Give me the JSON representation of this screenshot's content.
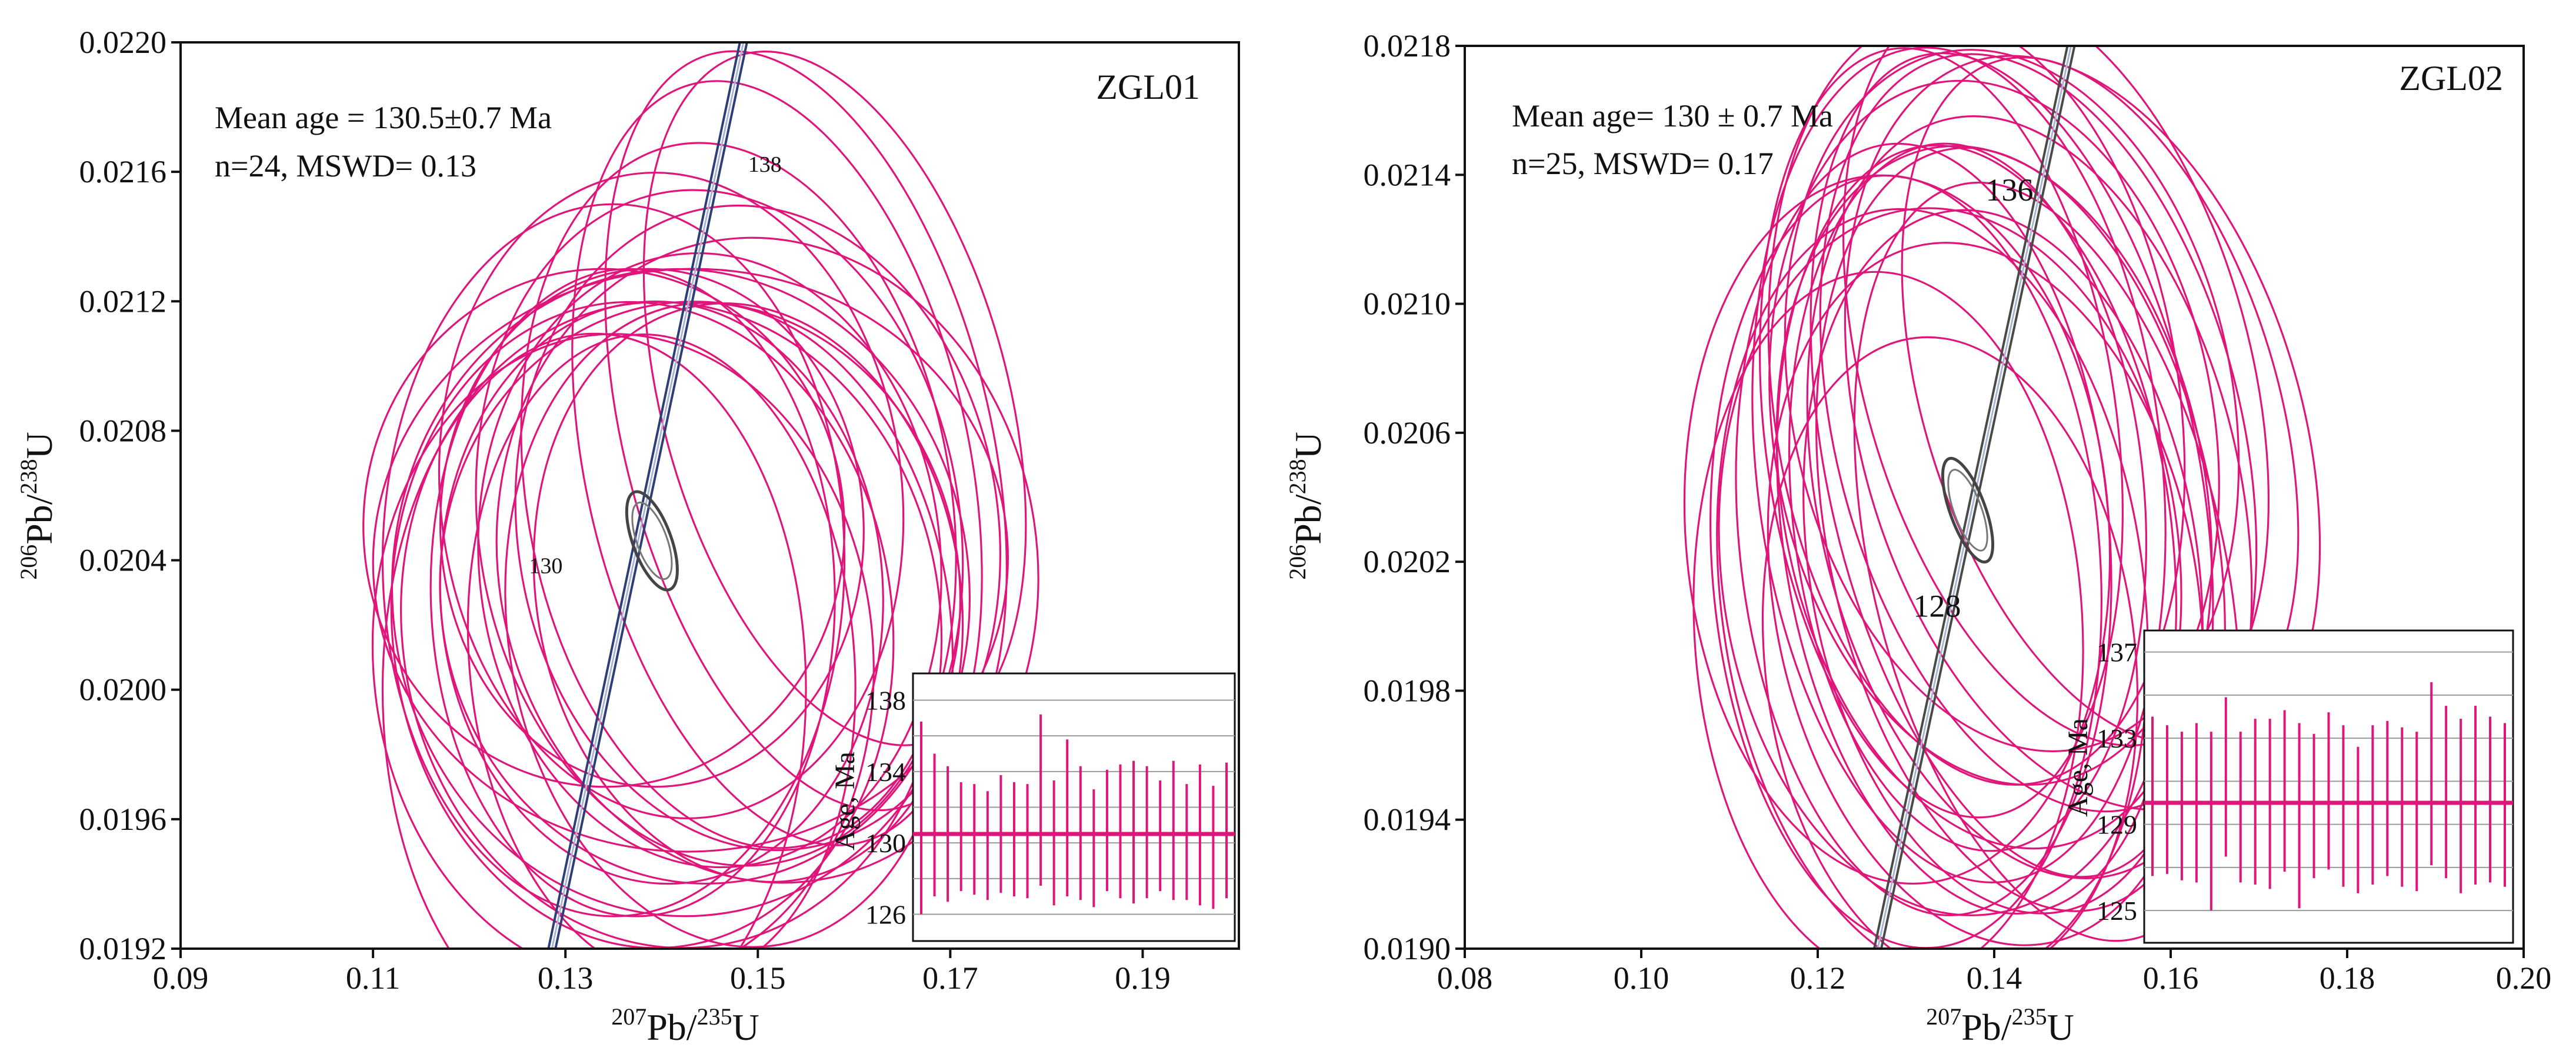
{
  "colors": {
    "ellipse": "#e0157a",
    "concordia_left": "#2e3f78",
    "concordia_right": "#4a4a4a",
    "axis": "#111111",
    "grid": "#9a9a9a"
  },
  "chart_data": [
    {
      "type": "scatter",
      "subtype": "concordia",
      "sample": "ZGL01",
      "stats": {
        "mean_line": "Mean age = 130.5±0.7 Ma",
        "n_line": "n=24, MSWD= 0.13"
      },
      "xlabel": {
        "sup1": "207",
        "main1": "Pb/",
        "sup2": "235",
        "main2": "U"
      },
      "ylabel": {
        "sup1": "206",
        "main1": "Pb/",
        "sup2": "238",
        "main2": "U"
      },
      "xlim": [
        0.09,
        0.2
      ],
      "ylim": [
        0.0192,
        0.022
      ],
      "x_ticks": [
        "0.09",
        "0.11",
        "0.13",
        "0.15",
        "0.17",
        "0.19"
      ],
      "y_ticks": [
        "0.0192",
        "0.0196",
        "0.0200",
        "0.0204",
        "0.0208",
        "0.0212",
        "0.0216",
        "0.0220"
      ],
      "concordia": {
        "x": [
          0.1286,
          0.1485
        ],
        "y": [
          0.0192,
          0.022
        ]
      },
      "concordia_labels": [
        {
          "text": "138",
          "x": 0.1485,
          "y": 0.0216
        },
        {
          "text": "130",
          "x": 0.1305,
          "y": 0.02036
        }
      ],
      "mean_ellipse": {
        "x": 0.139,
        "y": 0.02046,
        "rx": 0.002,
        "ry": 0.00016,
        "rot": 20
      },
      "ellipses": [
        {
          "x": 0.15,
          "y": 0.0205,
          "rx": 0.025,
          "ry": 0.001,
          "rot": 8
        },
        {
          "x": 0.145,
          "y": 0.0204,
          "rx": 0.024,
          "ry": 0.00095,
          "rot": 5
        },
        {
          "x": 0.14,
          "y": 0.0203,
          "rx": 0.023,
          "ry": 0.0009,
          "rot": 3
        },
        {
          "x": 0.138,
          "y": 0.0202,
          "rx": 0.026,
          "ry": 0.001,
          "rot": 6
        },
        {
          "x": 0.148,
          "y": 0.0206,
          "rx": 0.022,
          "ry": 0.0011,
          "rot": 10
        },
        {
          "x": 0.142,
          "y": 0.0203,
          "rx": 0.03,
          "ry": 0.001,
          "rot": 4
        },
        {
          "x": 0.135,
          "y": 0.0204,
          "rx": 0.024,
          "ry": 0.0011,
          "rot": 0
        },
        {
          "x": 0.152,
          "y": 0.0207,
          "rx": 0.02,
          "ry": 0.0012,
          "rot": 12
        },
        {
          "x": 0.144,
          "y": 0.0203,
          "rx": 0.027,
          "ry": 0.0009,
          "rot": 6
        },
        {
          "x": 0.139,
          "y": 0.0205,
          "rx": 0.022,
          "ry": 0.0008,
          "rot": 2
        },
        {
          "x": 0.141,
          "y": 0.0202,
          "rx": 0.028,
          "ry": 0.001,
          "rot": 7
        },
        {
          "x": 0.146,
          "y": 0.0205,
          "rx": 0.025,
          "ry": 0.00105,
          "rot": 9
        },
        {
          "x": 0.137,
          "y": 0.0203,
          "rx": 0.021,
          "ry": 0.001,
          "rot": 1
        },
        {
          "x": 0.143,
          "y": 0.0204,
          "rx": 0.033,
          "ry": 0.0009,
          "rot": 3
        },
        {
          "x": 0.155,
          "y": 0.0208,
          "rx": 0.019,
          "ry": 0.0012,
          "rot": 14
        },
        {
          "x": 0.147,
          "y": 0.0202,
          "rx": 0.023,
          "ry": 0.001,
          "rot": 8
        },
        {
          "x": 0.136,
          "y": 0.0201,
          "rx": 0.026,
          "ry": 0.001,
          "rot": 4
        },
        {
          "x": 0.158,
          "y": 0.0209,
          "rx": 0.018,
          "ry": 0.0011,
          "rot": 15
        },
        {
          "x": 0.141,
          "y": 0.0206,
          "rx": 0.024,
          "ry": 0.001,
          "rot": 6
        },
        {
          "x": 0.149,
          "y": 0.0203,
          "rx": 0.022,
          "ry": 0.0009,
          "rot": 10
        },
        {
          "x": 0.134,
          "y": 0.0205,
          "rx": 0.025,
          "ry": 0.0008,
          "rot": 2
        },
        {
          "x": 0.14,
          "y": 0.0201,
          "rx": 0.02,
          "ry": 0.001,
          "rot": 5
        },
        {
          "x": 0.133,
          "y": 0.02,
          "rx": 0.022,
          "ry": 0.0011,
          "rot": 0
        },
        {
          "x": 0.151,
          "y": 0.0204,
          "rx": 0.028,
          "ry": 0.001,
          "rot": 9
        }
      ],
      "inset": {
        "ylabel": "Age, Ma",
        "ylim": [
          124.5,
          139.5
        ],
        "y_ticks": [
          126,
          130,
          134,
          138
        ],
        "gridlines": [
          126,
          128,
          130,
          132,
          134,
          136,
          138
        ],
        "mean": 130.5,
        "bars": [
          {
            "lo": 126.0,
            "hi": 136.8
          },
          {
            "lo": 127.0,
            "hi": 135.0
          },
          {
            "lo": 126.7,
            "hi": 134.3
          },
          {
            "lo": 127.3,
            "hi": 133.4
          },
          {
            "lo": 127.1,
            "hi": 133.3
          },
          {
            "lo": 126.8,
            "hi": 132.9
          },
          {
            "lo": 127.2,
            "hi": 133.8
          },
          {
            "lo": 127.0,
            "hi": 133.4
          },
          {
            "lo": 126.9,
            "hi": 133.3
          },
          {
            "lo": 127.6,
            "hi": 137.2
          },
          {
            "lo": 126.5,
            "hi": 133.5
          },
          {
            "lo": 127.0,
            "hi": 135.8
          },
          {
            "lo": 126.8,
            "hi": 134.3
          },
          {
            "lo": 126.4,
            "hi": 133.0
          },
          {
            "lo": 127.3,
            "hi": 134.1
          },
          {
            "lo": 126.9,
            "hi": 134.4
          },
          {
            "lo": 126.6,
            "hi": 134.6
          },
          {
            "lo": 126.9,
            "hi": 134.3
          },
          {
            "lo": 127.3,
            "hi": 133.5
          },
          {
            "lo": 126.8,
            "hi": 134.6
          },
          {
            "lo": 126.8,
            "hi": 133.3
          },
          {
            "lo": 126.5,
            "hi": 134.4
          },
          {
            "lo": 126.3,
            "hi": 133.2
          },
          {
            "lo": 126.9,
            "hi": 134.5
          }
        ]
      }
    },
    {
      "type": "scatter",
      "subtype": "concordia",
      "sample": "ZGL02",
      "stats": {
        "mean_line": "Mean age= 130 ± 0.7 Ma",
        "n_line": "n=25, MSWD= 0.17"
      },
      "xlabel": {
        "sup1": "207",
        "main1": "Pb/",
        "sup2": "235",
        "main2": "U"
      },
      "ylabel": {
        "sup1": "206",
        "main1": "Pb/",
        "sup2": "238",
        "main2": "U"
      },
      "xlim": [
        0.08,
        0.2
      ],
      "ylim": [
        0.019,
        0.0218
      ],
      "x_ticks": [
        "0.08",
        "0.10",
        "0.12",
        "0.14",
        "0.16",
        "0.18",
        "0.20"
      ],
      "y_ticks": [
        "0.0190",
        "0.0194",
        "0.0198",
        "0.0202",
        "0.0206",
        "0.0210",
        "0.0214",
        "0.0218"
      ],
      "concordia": {
        "x": [
          0.1268,
          0.1487
        ],
        "y": [
          0.019,
          0.0218
        ]
      },
      "concordia_labels": [
        {
          "text": "136",
          "x": 0.1385,
          "y": 0.02132
        },
        {
          "text": "128",
          "x": 0.1355,
          "y": 0.02003
        }
      ],
      "mean_ellipse": {
        "x": 0.137,
        "y": 0.02036,
        "rx": 0.002,
        "ry": 0.00017,
        "rot": 20
      },
      "ellipses": [
        {
          "x": 0.14,
          "y": 0.0204,
          "rx": 0.024,
          "ry": 0.0011,
          "rot": 10
        },
        {
          "x": 0.138,
          "y": 0.0203,
          "rx": 0.022,
          "ry": 0.0012,
          "rot": 8
        },
        {
          "x": 0.135,
          "y": 0.0202,
          "rx": 0.026,
          "ry": 0.0011,
          "rot": 6
        },
        {
          "x": 0.142,
          "y": 0.0205,
          "rx": 0.021,
          "ry": 0.0013,
          "rot": 12
        },
        {
          "x": 0.13,
          "y": 0.0202,
          "rx": 0.022,
          "ry": 0.0012,
          "rot": 4
        },
        {
          "x": 0.145,
          "y": 0.0206,
          "rx": 0.023,
          "ry": 0.0012,
          "rot": 14
        },
        {
          "x": 0.137,
          "y": 0.0204,
          "rx": 0.02,
          "ry": 0.0011,
          "rot": 5
        },
        {
          "x": 0.15,
          "y": 0.0206,
          "rx": 0.025,
          "ry": 0.0012,
          "rot": 16
        },
        {
          "x": 0.133,
          "y": 0.0201,
          "rx": 0.024,
          "ry": 0.0012,
          "rot": 7
        },
        {
          "x": 0.14,
          "y": 0.0206,
          "rx": 0.025,
          "ry": 0.0011,
          "rot": 9
        },
        {
          "x": 0.128,
          "y": 0.02,
          "rx": 0.022,
          "ry": 0.0011,
          "rot": 3
        },
        {
          "x": 0.143,
          "y": 0.0203,
          "rx": 0.022,
          "ry": 0.0012,
          "rot": 11
        },
        {
          "x": 0.136,
          "y": 0.0205,
          "rx": 0.023,
          "ry": 0.0013,
          "rot": 6
        },
        {
          "x": 0.147,
          "y": 0.0208,
          "rx": 0.022,
          "ry": 0.0012,
          "rot": 15
        },
        {
          "x": 0.132,
          "y": 0.0203,
          "rx": 0.021,
          "ry": 0.0012,
          "rot": 5
        },
        {
          "x": 0.139,
          "y": 0.0201,
          "rx": 0.024,
          "ry": 0.0011,
          "rot": 10
        },
        {
          "x": 0.144,
          "y": 0.0204,
          "rx": 0.024,
          "ry": 0.0012,
          "rot": 12
        },
        {
          "x": 0.134,
          "y": 0.0206,
          "rx": 0.02,
          "ry": 0.0012,
          "rot": 7
        },
        {
          "x": 0.141,
          "y": 0.0202,
          "rx": 0.022,
          "ry": 0.0011,
          "rot": 9
        },
        {
          "x": 0.152,
          "y": 0.0207,
          "rx": 0.02,
          "ry": 0.0011,
          "rot": 17
        },
        {
          "x": 0.129,
          "y": 0.0203,
          "rx": 0.024,
          "ry": 0.0011,
          "rot": 4
        },
        {
          "x": 0.138,
          "y": 0.0207,
          "rx": 0.023,
          "ry": 0.0012,
          "rot": 8
        },
        {
          "x": 0.146,
          "y": 0.0202,
          "rx": 0.02,
          "ry": 0.0012,
          "rot": 13
        },
        {
          "x": 0.135,
          "y": 0.0199,
          "rx": 0.021,
          "ry": 0.001,
          "rot": 6
        },
        {
          "x": 0.142,
          "y": 0.0207,
          "rx": 0.025,
          "ry": 0.0011,
          "rot": 11
        }
      ],
      "inset": {
        "ylabel": "Age, Ma",
        "ylim": [
          123.5,
          138.0
        ],
        "y_ticks": [
          125,
          129,
          133,
          137
        ],
        "gridlines": [
          125,
          127,
          129,
          131,
          133,
          135,
          137
        ],
        "mean": 130.0,
        "bars": [
          {
            "lo": 126.6,
            "hi": 134.0
          },
          {
            "lo": 126.7,
            "hi": 133.6
          },
          {
            "lo": 126.4,
            "hi": 133.3
          },
          {
            "lo": 126.3,
            "hi": 133.7
          },
          {
            "lo": 125.0,
            "hi": 133.3
          },
          {
            "lo": 127.5,
            "hi": 134.9
          },
          {
            "lo": 126.3,
            "hi": 133.3
          },
          {
            "lo": 126.2,
            "hi": 133.9
          },
          {
            "lo": 126.0,
            "hi": 133.9
          },
          {
            "lo": 126.8,
            "hi": 134.3
          },
          {
            "lo": 125.1,
            "hi": 133.7
          },
          {
            "lo": 126.5,
            "hi": 133.2
          },
          {
            "lo": 126.9,
            "hi": 134.2
          },
          {
            "lo": 126.1,
            "hi": 133.6
          },
          {
            "lo": 125.8,
            "hi": 132.6
          },
          {
            "lo": 126.2,
            "hi": 133.6
          },
          {
            "lo": 126.6,
            "hi": 133.8
          },
          {
            "lo": 126.1,
            "hi": 133.5
          },
          {
            "lo": 125.9,
            "hi": 133.3
          },
          {
            "lo": 127.1,
            "hi": 135.6
          },
          {
            "lo": 126.5,
            "hi": 134.5
          },
          {
            "lo": 125.8,
            "hi": 133.9
          },
          {
            "lo": 126.2,
            "hi": 134.5
          },
          {
            "lo": 126.3,
            "hi": 134.0
          },
          {
            "lo": 126.1,
            "hi": 133.7
          }
        ]
      }
    }
  ]
}
